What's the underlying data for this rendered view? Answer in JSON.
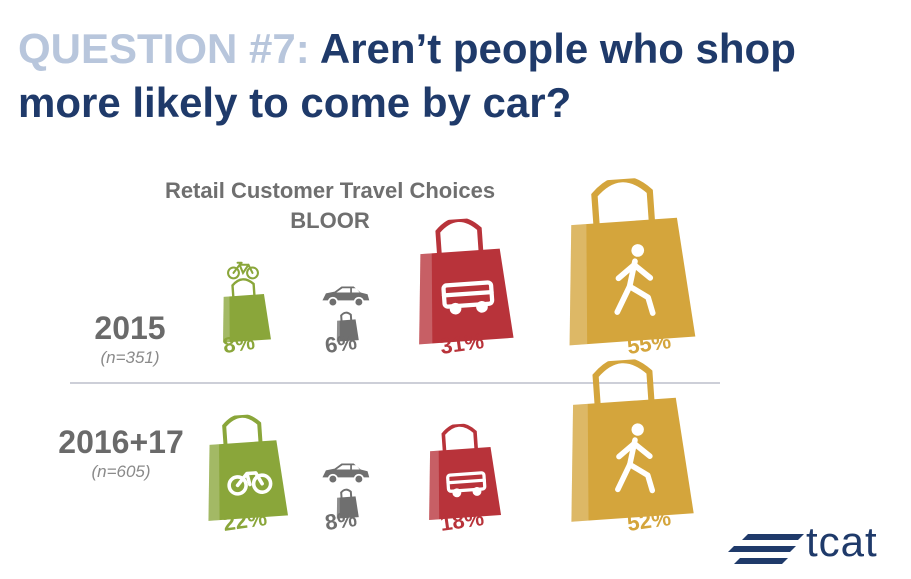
{
  "header": {
    "question_label": "QUESTION #7:",
    "question_text": "Aren’t people who shop more likely to come by car?"
  },
  "logo": {
    "text": "tcat"
  },
  "chart_data": {
    "type": "pictogram",
    "title": "Retail Customer Travel Choices",
    "subtitle": "BLOOR",
    "categories": [
      "bicycle",
      "car",
      "transit",
      "walking"
    ],
    "colors": {
      "bicycle": "#8aa63a",
      "car": "#6f6f6f",
      "transit": "#b8333a",
      "walking": "#d4a53c"
    },
    "rows": [
      {
        "label": "2015",
        "n": "(n=351)",
        "values": [
          8,
          6,
          31,
          55
        ],
        "value_labels": [
          "8%",
          "6%",
          "31%",
          "55%"
        ]
      },
      {
        "label": "2016+17",
        "n": "(n=605)",
        "values": [
          22,
          8,
          18,
          52
        ],
        "value_labels": [
          "22%",
          "8%",
          "18%",
          "52%"
        ]
      }
    ]
  }
}
